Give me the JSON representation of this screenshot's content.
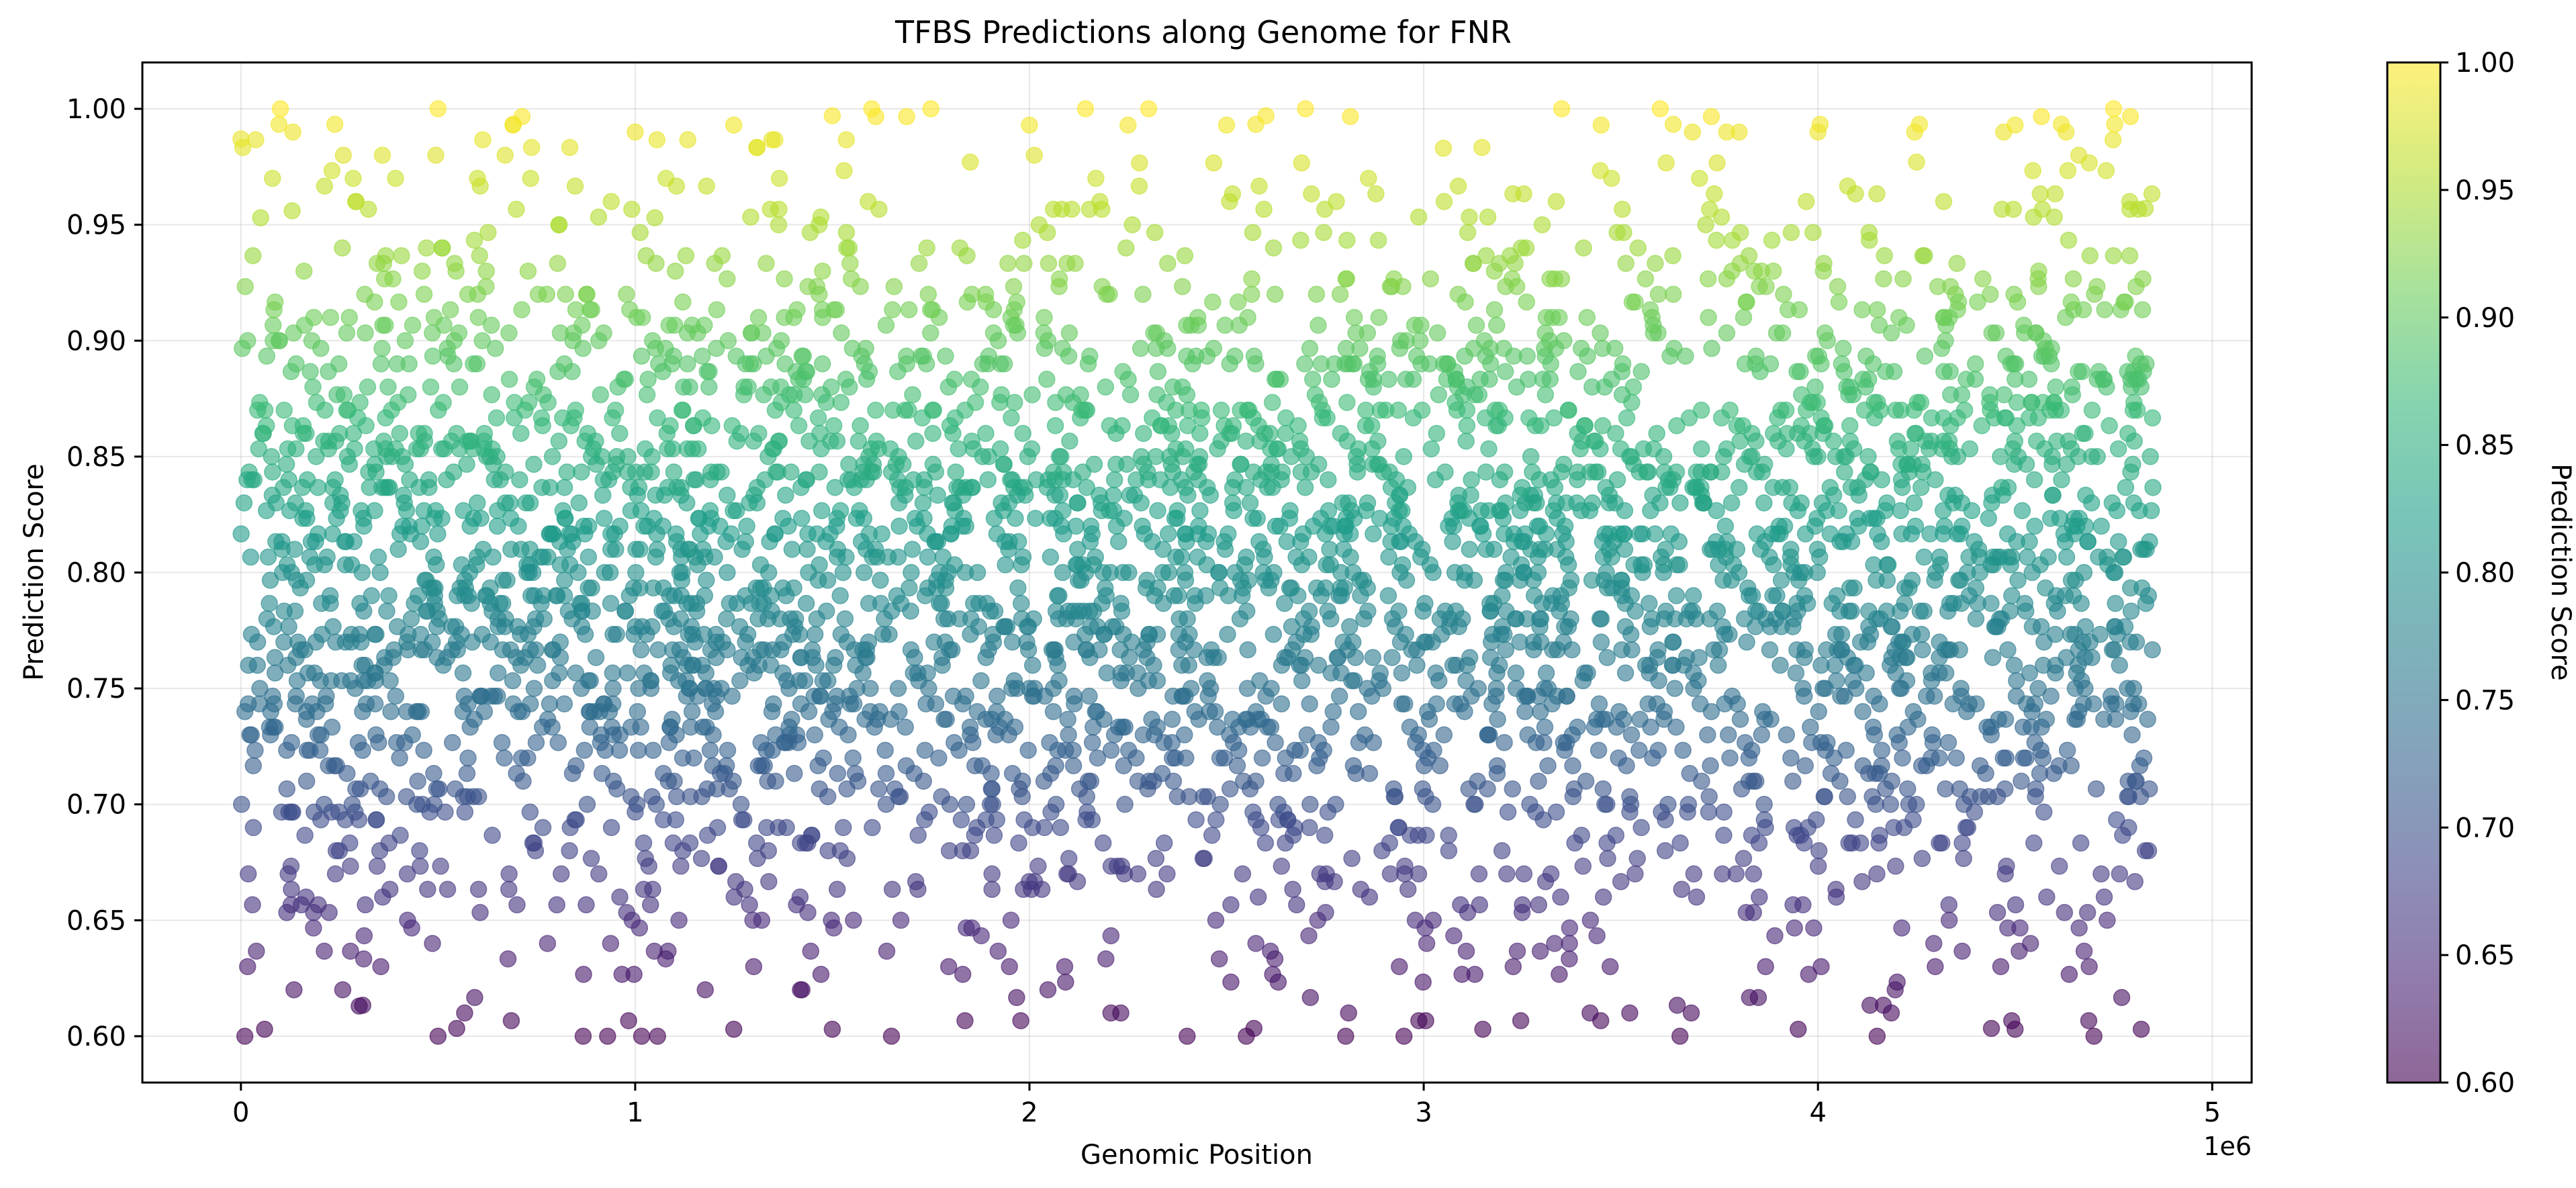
{
  "chart_data": {
    "type": "scatter",
    "title": "TFBS Predictions along Genome for FNR",
    "xlabel": "Genomic Position",
    "ylabel": "Prediction Score",
    "x_offset_label": "1e6",
    "x_multiplier": 1000000,
    "xlim": [
      -250000,
      5100000
    ],
    "ylim": [
      0.58,
      1.02
    ],
    "x_ticks": [
      0,
      1,
      2,
      3,
      4,
      5
    ],
    "y_ticks": [
      "0.60",
      "0.65",
      "0.70",
      "0.75",
      "0.80",
      "0.85",
      "0.90",
      "0.95",
      "1.00"
    ],
    "grid": true,
    "marker_alpha": 0.6,
    "colormap": "viridis",
    "colormap_stops": [
      "#440154",
      "#482878",
      "#3e4989",
      "#31688e",
      "#26828e",
      "#1f9e89",
      "#35b779",
      "#6ece58",
      "#b5de2b",
      "#fde725"
    ],
    "colorbar": {
      "label": "Prediction Score",
      "range": [
        0.6,
        1.0
      ],
      "ticks": [
        "0.60",
        "0.65",
        "0.70",
        "0.75",
        "0.80",
        "0.85",
        "0.90",
        "0.95",
        "1.00"
      ]
    },
    "point_count": 4000,
    "position_range": [
      0,
      4850000
    ],
    "score_range": [
      0.6,
      1.0
    ],
    "points": [
      [
        0,
        0.987
      ],
      [
        50000,
        0.953
      ],
      [
        100000,
        1.0
      ],
      [
        80000,
        0.97
      ],
      [
        130000,
        0.956
      ],
      [
        500000,
        1.0
      ],
      [
        600000,
        0.97
      ],
      [
        690000,
        0.993
      ],
      [
        1000000,
        0.99
      ],
      [
        1050000,
        0.953
      ],
      [
        1250000,
        0.993
      ],
      [
        1500000,
        0.997
      ],
      [
        1600000,
        1.0
      ],
      [
        1750000,
        1.0
      ],
      [
        1850000,
        0.977
      ],
      [
        2000000,
        0.993
      ],
      [
        2250000,
        0.993
      ],
      [
        2500000,
        0.993
      ],
      [
        2600000,
        0.997
      ],
      [
        2700000,
        1.0
      ],
      [
        3050000,
        0.983
      ],
      [
        3350000,
        1.0
      ],
      [
        3450000,
        0.993
      ],
      [
        3600000,
        1.0
      ],
      [
        3800000,
        0.99
      ],
      [
        4000000,
        0.99
      ],
      [
        4250000,
        0.977
      ],
      [
        4500000,
        0.993
      ],
      [
        4750000,
        1.0
      ],
      [
        4830000,
        0.957
      ],
      [
        10000,
        0.6
      ],
      [
        60000,
        0.603
      ],
      [
        300000,
        0.613
      ],
      [
        500000,
        0.6
      ],
      [
        930000,
        0.6
      ],
      [
        1250000,
        0.603
      ],
      [
        1500000,
        0.603
      ],
      [
        1650000,
        0.6
      ],
      [
        2400000,
        0.6
      ],
      [
        2550000,
        0.6
      ],
      [
        2950000,
        0.6
      ],
      [
        3150000,
        0.603
      ],
      [
        3650000,
        0.6
      ],
      [
        3950000,
        0.603
      ],
      [
        4150000,
        0.6
      ],
      [
        4500000,
        0.603
      ],
      [
        4700000,
        0.6
      ],
      [
        4820000,
        0.603
      ]
    ]
  }
}
